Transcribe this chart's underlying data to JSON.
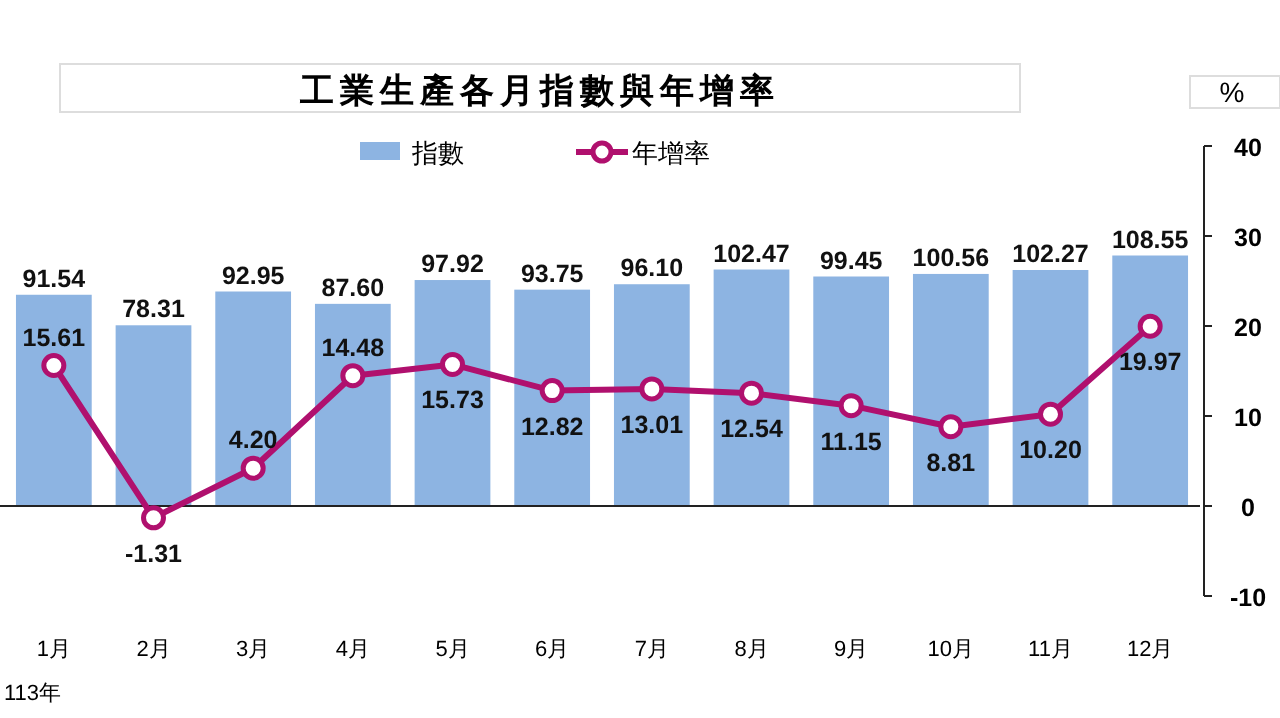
{
  "chart_data": {
    "type": "bar",
    "title": "工業生產各月指數與年增率",
    "y2label": "%",
    "categories": [
      "1月",
      "2月",
      "3月",
      "4月",
      "5月",
      "6月",
      "7月",
      "8月",
      "9月",
      "10月",
      "11月",
      "12月"
    ],
    "series": [
      {
        "name": "指數",
        "color": "#8db4e2",
        "values": [
          91.54,
          78.31,
          92.95,
          87.6,
          97.92,
          93.75,
          96.1,
          102.47,
          99.45,
          100.56,
          102.27,
          108.55
        ],
        "value_labels": [
          "91.54",
          "78.31",
          "92.95",
          "87.60",
          "97.92",
          "93.75",
          "96.10",
          "102.47",
          "99.45",
          "100.56",
          "102.27",
          "108.55"
        ]
      },
      {
        "name": "年增率",
        "type": "line",
        "axis": "y2",
        "color": "#b0106e",
        "marker": "circle",
        "values": [
          15.61,
          -1.31,
          4.2,
          14.48,
          15.73,
          12.82,
          13.01,
          12.54,
          11.15,
          8.81,
          10.2,
          19.97
        ],
        "value_labels": [
          "15.61",
          "-1.31",
          "4.20",
          "14.48",
          "15.73",
          "12.82",
          "13.01",
          "12.54",
          "11.15",
          "8.81",
          "10.20",
          "19.97"
        ]
      }
    ],
    "ylim": [
      0,
      156
    ],
    "y2lim": [
      -10,
      40
    ],
    "y2ticks": [
      -10,
      0,
      10,
      20,
      30,
      40
    ],
    "legend": "top",
    "annotations": [
      "113年"
    ]
  }
}
